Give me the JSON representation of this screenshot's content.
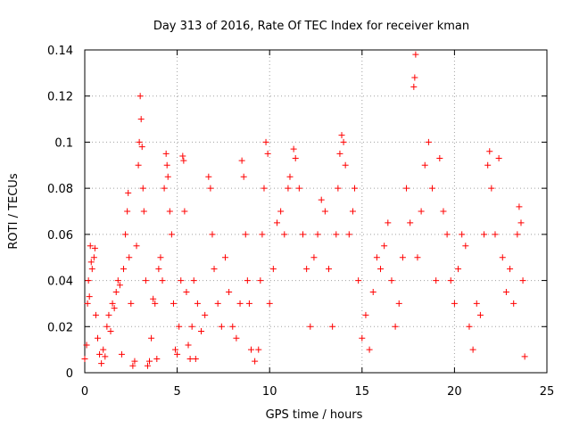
{
  "chart_data": {
    "type": "scatter",
    "title": "Day 313 of 2016, Rate Of TEC Index for receiver kman",
    "xlabel": "GPS time / hours",
    "ylabel": "ROTI / TECUs",
    "xlim": [
      0,
      25
    ],
    "ylim": [
      0,
      0.14
    ],
    "xticks": [
      0,
      5,
      10,
      15,
      20,
      25
    ],
    "xtick_labels": [
      "0",
      "5",
      "10",
      "15",
      "20",
      "25"
    ],
    "yticks": [
      0,
      0.02,
      0.04,
      0.06,
      0.08,
      0.1,
      0.12,
      0.14
    ],
    "ytick_labels": [
      "0",
      "0.02",
      "0.04",
      "0.06",
      "0.08",
      "0.1",
      "0.12",
      "0.14"
    ],
    "grid": true,
    "marker": "+",
    "color": "#ff0000",
    "note": "Dense point cloud; representative sample of readable points",
    "series": [
      {
        "name": "kman ROTI",
        "points": [
          [
            0.0,
            0.006
          ],
          [
            0.1,
            0.012
          ],
          [
            0.15,
            0.03
          ],
          [
            0.2,
            0.04
          ],
          [
            0.25,
            0.033
          ],
          [
            0.3,
            0.055
          ],
          [
            0.35,
            0.048
          ],
          [
            0.4,
            0.045
          ],
          [
            0.5,
            0.05
          ],
          [
            0.55,
            0.054
          ],
          [
            0.6,
            0.025
          ],
          [
            0.7,
            0.015
          ],
          [
            0.8,
            0.008
          ],
          [
            0.9,
            0.004
          ],
          [
            1.0,
            0.01
          ],
          [
            1.1,
            0.007
          ],
          [
            1.2,
            0.02
          ],
          [
            1.3,
            0.025
          ],
          [
            1.4,
            0.018
          ],
          [
            1.5,
            0.03
          ],
          [
            1.6,
            0.028
          ],
          [
            1.7,
            0.035
          ],
          [
            1.8,
            0.04
          ],
          [
            1.9,
            0.038
          ],
          [
            2.0,
            0.008
          ],
          [
            2.1,
            0.045
          ],
          [
            2.2,
            0.06
          ],
          [
            2.3,
            0.07
          ],
          [
            2.35,
            0.078
          ],
          [
            2.4,
            0.05
          ],
          [
            2.5,
            0.03
          ],
          [
            2.6,
            0.003
          ],
          [
            2.7,
            0.005
          ],
          [
            2.8,
            0.055
          ],
          [
            2.9,
            0.09
          ],
          [
            2.95,
            0.1
          ],
          [
            3.0,
            0.12
          ],
          [
            3.05,
            0.11
          ],
          [
            3.1,
            0.098
          ],
          [
            3.15,
            0.08
          ],
          [
            3.2,
            0.07
          ],
          [
            3.3,
            0.04
          ],
          [
            3.4,
            0.003
          ],
          [
            3.5,
            0.005
          ],
          [
            3.6,
            0.015
          ],
          [
            3.7,
            0.032
          ],
          [
            3.8,
            0.03
          ],
          [
            3.9,
            0.006
          ],
          [
            4.0,
            0.045
          ],
          [
            4.1,
            0.05
          ],
          [
            4.2,
            0.04
          ],
          [
            4.3,
            0.08
          ],
          [
            4.4,
            0.095
          ],
          [
            4.45,
            0.09
          ],
          [
            4.5,
            0.085
          ],
          [
            4.6,
            0.07
          ],
          [
            4.7,
            0.06
          ],
          [
            4.8,
            0.03
          ],
          [
            4.9,
            0.01
          ],
          [
            5.0,
            0.008
          ],
          [
            5.1,
            0.02
          ],
          [
            5.2,
            0.04
          ],
          [
            5.3,
            0.094
          ],
          [
            5.35,
            0.092
          ],
          [
            5.4,
            0.07
          ],
          [
            5.5,
            0.035
          ],
          [
            5.6,
            0.012
          ],
          [
            5.7,
            0.006
          ],
          [
            5.8,
            0.02
          ],
          [
            5.9,
            0.04
          ],
          [
            6.0,
            0.006
          ],
          [
            6.1,
            0.03
          ],
          [
            6.3,
            0.018
          ],
          [
            6.5,
            0.025
          ],
          [
            6.7,
            0.085
          ],
          [
            6.8,
            0.08
          ],
          [
            6.9,
            0.06
          ],
          [
            7.0,
            0.045
          ],
          [
            7.2,
            0.03
          ],
          [
            7.4,
            0.02
          ],
          [
            7.6,
            0.05
          ],
          [
            7.8,
            0.035
          ],
          [
            8.0,
            0.02
          ],
          [
            8.2,
            0.015
          ],
          [
            8.4,
            0.03
          ],
          [
            8.5,
            0.092
          ],
          [
            8.6,
            0.085
          ],
          [
            8.7,
            0.06
          ],
          [
            8.8,
            0.04
          ],
          [
            8.9,
            0.03
          ],
          [
            9.0,
            0.01
          ],
          [
            9.2,
            0.005
          ],
          [
            9.4,
            0.01
          ],
          [
            9.5,
            0.04
          ],
          [
            9.6,
            0.06
          ],
          [
            9.7,
            0.08
          ],
          [
            9.8,
            0.1
          ],
          [
            9.9,
            0.095
          ],
          [
            10.0,
            0.03
          ],
          [
            10.2,
            0.045
          ],
          [
            10.4,
            0.065
          ],
          [
            10.6,
            0.07
          ],
          [
            10.8,
            0.06
          ],
          [
            11.0,
            0.08
          ],
          [
            11.1,
            0.085
          ],
          [
            11.3,
            0.097
          ],
          [
            11.4,
            0.093
          ],
          [
            11.6,
            0.08
          ],
          [
            11.8,
            0.06
          ],
          [
            12.0,
            0.045
          ],
          [
            12.2,
            0.02
          ],
          [
            12.4,
            0.05
          ],
          [
            12.6,
            0.06
          ],
          [
            12.8,
            0.075
          ],
          [
            13.0,
            0.07
          ],
          [
            13.2,
            0.045
          ],
          [
            13.4,
            0.02
          ],
          [
            13.6,
            0.06
          ],
          [
            13.7,
            0.08
          ],
          [
            13.8,
            0.095
          ],
          [
            13.9,
            0.103
          ],
          [
            14.0,
            0.1
          ],
          [
            14.1,
            0.09
          ],
          [
            14.3,
            0.06
          ],
          [
            14.5,
            0.07
          ],
          [
            14.6,
            0.08
          ],
          [
            14.8,
            0.04
          ],
          [
            15.0,
            0.015
          ],
          [
            15.2,
            0.025
          ],
          [
            15.4,
            0.01
          ],
          [
            15.6,
            0.035
          ],
          [
            15.8,
            0.05
          ],
          [
            16.0,
            0.045
          ],
          [
            16.2,
            0.055
          ],
          [
            16.4,
            0.065
          ],
          [
            16.6,
            0.04
          ],
          [
            16.8,
            0.02
          ],
          [
            17.0,
            0.03
          ],
          [
            17.2,
            0.05
          ],
          [
            17.4,
            0.08
          ],
          [
            17.6,
            0.065
          ],
          [
            17.8,
            0.124
          ],
          [
            17.85,
            0.128
          ],
          [
            17.9,
            0.138
          ],
          [
            18.0,
            0.05
          ],
          [
            18.2,
            0.07
          ],
          [
            18.4,
            0.09
          ],
          [
            18.6,
            0.1
          ],
          [
            18.8,
            0.08
          ],
          [
            19.0,
            0.04
          ],
          [
            19.2,
            0.093
          ],
          [
            19.4,
            0.07
          ],
          [
            19.6,
            0.06
          ],
          [
            19.8,
            0.04
          ],
          [
            20.0,
            0.03
          ],
          [
            20.2,
            0.045
          ],
          [
            20.4,
            0.06
          ],
          [
            20.6,
            0.055
          ],
          [
            20.8,
            0.02
          ],
          [
            21.0,
            0.01
          ],
          [
            21.2,
            0.03
          ],
          [
            21.4,
            0.025
          ],
          [
            21.6,
            0.06
          ],
          [
            21.8,
            0.09
          ],
          [
            21.9,
            0.096
          ],
          [
            22.0,
            0.08
          ],
          [
            22.2,
            0.06
          ],
          [
            22.4,
            0.093
          ],
          [
            22.6,
            0.05
          ],
          [
            22.8,
            0.035
          ],
          [
            23.0,
            0.045
          ],
          [
            23.2,
            0.03
          ],
          [
            23.4,
            0.06
          ],
          [
            23.5,
            0.072
          ],
          [
            23.6,
            0.065
          ],
          [
            23.7,
            0.04
          ],
          [
            23.8,
            0.007
          ]
        ]
      }
    ]
  }
}
